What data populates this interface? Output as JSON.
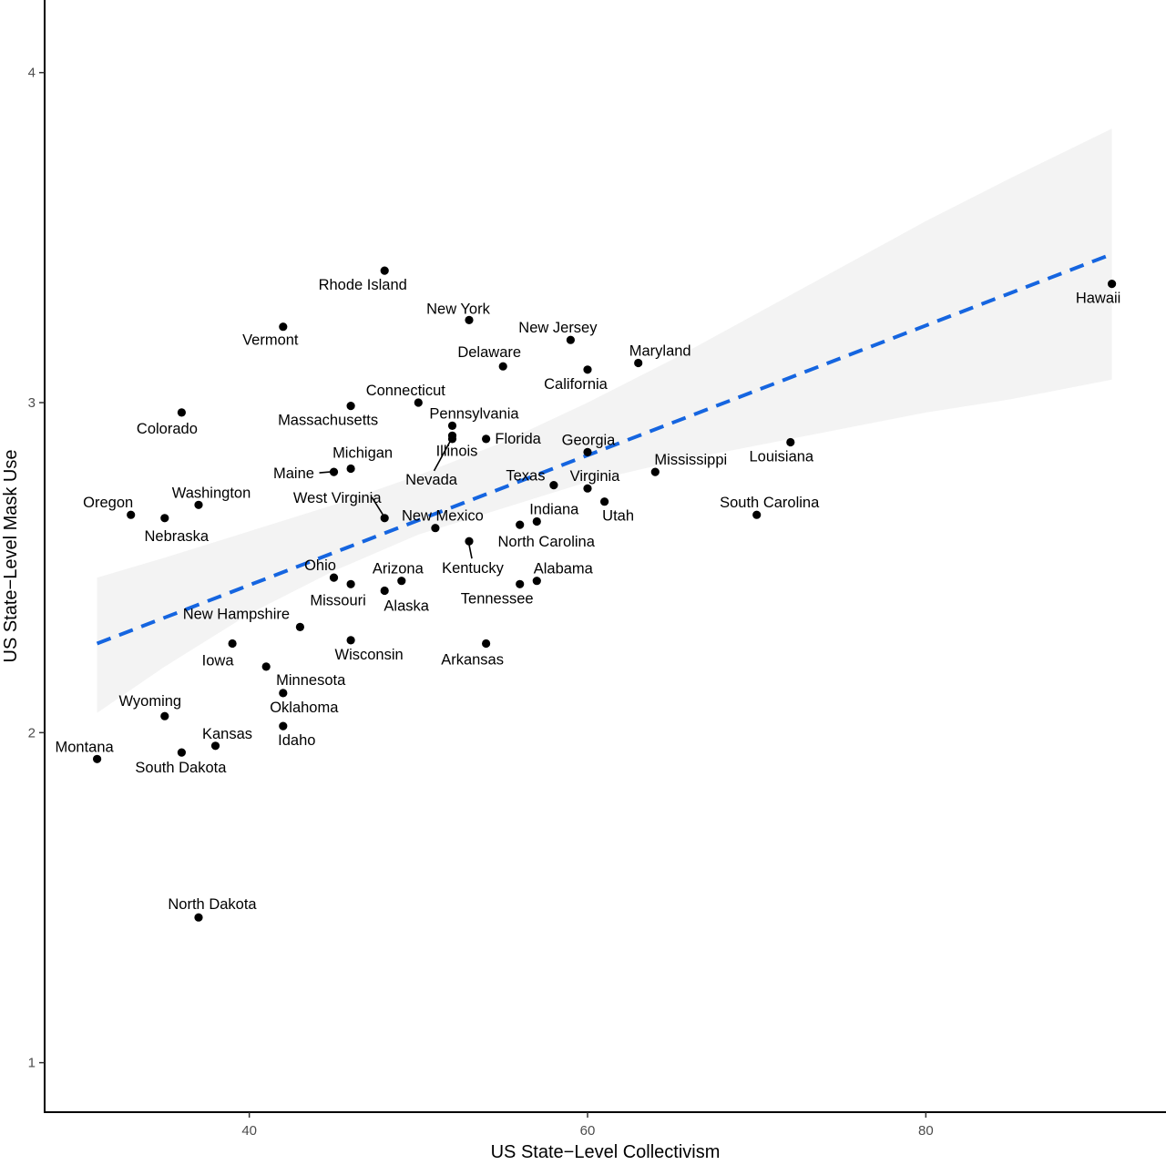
{
  "chart_data": {
    "type": "scatter",
    "title": "",
    "xlabel": "US State−Level Collectivism",
    "ylabel": "US State−Level Mask Use",
    "xlim": [
      27.9,
      94.2
    ],
    "ylim": [
      0.85,
      4.22
    ],
    "x_ticks": [
      40,
      60,
      80
    ],
    "y_ticks": [
      1,
      2,
      3,
      4
    ],
    "grid": false,
    "colors": {
      "trend": "#1565e0",
      "ribbon": "#ebebeb",
      "point": "#000000",
      "axis": "#000000"
    },
    "trend": {
      "style": "dashed",
      "x": [
        31,
        91
      ],
      "y": [
        2.27,
        3.45
      ]
    },
    "confidence_band": {
      "x": [
        31,
        35,
        40,
        45,
        50,
        55,
        60,
        65,
        70,
        75,
        80,
        85,
        91
      ],
      "lower": [
        2.06,
        2.2,
        2.36,
        2.49,
        2.6,
        2.68,
        2.76,
        2.82,
        2.87,
        2.92,
        2.97,
        3.01,
        3.07
      ],
      "upper": [
        2.47,
        2.53,
        2.61,
        2.69,
        2.78,
        2.88,
        3.0,
        3.13,
        3.27,
        3.41,
        3.55,
        3.68,
        3.83
      ]
    },
    "points": [
      {
        "state": "Hawaii",
        "x": 91.0,
        "y": 3.36
      },
      {
        "state": "Louisiana",
        "x": 72.0,
        "y": 2.88
      },
      {
        "state": "South Carolina",
        "x": 70.0,
        "y": 2.66
      },
      {
        "state": "Maryland",
        "x": 63.0,
        "y": 3.12
      },
      {
        "state": "Mississippi",
        "x": 64.0,
        "y": 2.79
      },
      {
        "state": "California",
        "x": 60.0,
        "y": 3.1
      },
      {
        "state": "Georgia",
        "x": 60.0,
        "y": 2.85
      },
      {
        "state": "Virginia",
        "x": 60.0,
        "y": 2.74
      },
      {
        "state": "Utah",
        "x": 61.0,
        "y": 2.7
      },
      {
        "state": "New Jersey",
        "x": 59.0,
        "y": 3.19
      },
      {
        "state": "Texas",
        "x": 58.0,
        "y": 2.75
      },
      {
        "state": "Indiana",
        "x": 57.0,
        "y": 2.64
      },
      {
        "state": "North Carolina",
        "x": 56.0,
        "y": 2.63
      },
      {
        "state": "Alabama",
        "x": 57.0,
        "y": 2.46
      },
      {
        "state": "Tennessee",
        "x": 56.0,
        "y": 2.45
      },
      {
        "state": "Delaware",
        "x": 55.0,
        "y": 3.11
      },
      {
        "state": "New York",
        "x": 53.0,
        "y": 3.25
      },
      {
        "state": "Kentucky",
        "x": 53.0,
        "y": 2.58
      },
      {
        "state": "Florida",
        "x": 54.0,
        "y": 2.89
      },
      {
        "state": "Arkansas",
        "x": 54.0,
        "y": 2.27
      },
      {
        "state": "Pennsylvania",
        "x": 52.0,
        "y": 2.93
      },
      {
        "state": "Illinois",
        "x": 52.0,
        "y": 2.9
      },
      {
        "state": "Nevada",
        "x": 52.0,
        "y": 2.89
      },
      {
        "state": "New Mexico",
        "x": 51.0,
        "y": 2.62
      },
      {
        "state": "Connecticut",
        "x": 50.0,
        "y": 3.0
      },
      {
        "state": "Arizona",
        "x": 49.0,
        "y": 2.46
      },
      {
        "state": "Rhode Island",
        "x": 48.0,
        "y": 3.4
      },
      {
        "state": "West Virginia",
        "x": 48.0,
        "y": 2.65
      },
      {
        "state": "Alaska",
        "x": 48.0,
        "y": 2.43
      },
      {
        "state": "Massachusetts",
        "x": 46.0,
        "y": 2.99
      },
      {
        "state": "Michigan",
        "x": 46.0,
        "y": 2.8
      },
      {
        "state": "Missouri",
        "x": 46.0,
        "y": 2.45
      },
      {
        "state": "Wisconsin",
        "x": 46.0,
        "y": 2.28
      },
      {
        "state": "Maine",
        "x": 45.0,
        "y": 2.79
      },
      {
        "state": "Ohio",
        "x": 45.0,
        "y": 2.47
      },
      {
        "state": "New Hampshire",
        "x": 43.0,
        "y": 2.32
      },
      {
        "state": "Vermont",
        "x": 42.0,
        "y": 3.23
      },
      {
        "state": "Oklahoma",
        "x": 42.0,
        "y": 2.12
      },
      {
        "state": "Idaho",
        "x": 42.0,
        "y": 2.02
      },
      {
        "state": "Minnesota",
        "x": 41.0,
        "y": 2.2
      },
      {
        "state": "Iowa",
        "x": 39.0,
        "y": 2.27
      },
      {
        "state": "Kansas",
        "x": 38.0,
        "y": 1.96
      },
      {
        "state": "Washington",
        "x": 37.0,
        "y": 2.69
      },
      {
        "state": "North Dakota",
        "x": 37.0,
        "y": 1.44
      },
      {
        "state": "Colorado",
        "x": 36.0,
        "y": 2.97
      },
      {
        "state": "South Dakota",
        "x": 36.0,
        "y": 1.94
      },
      {
        "state": "Nebraska",
        "x": 35.0,
        "y": 2.65
      },
      {
        "state": "Wyoming",
        "x": 35.0,
        "y": 2.05
      },
      {
        "state": "Oregon",
        "x": 33.0,
        "y": 2.66
      },
      {
        "state": "Montana",
        "x": 31.0,
        "y": 1.92
      }
    ]
  }
}
